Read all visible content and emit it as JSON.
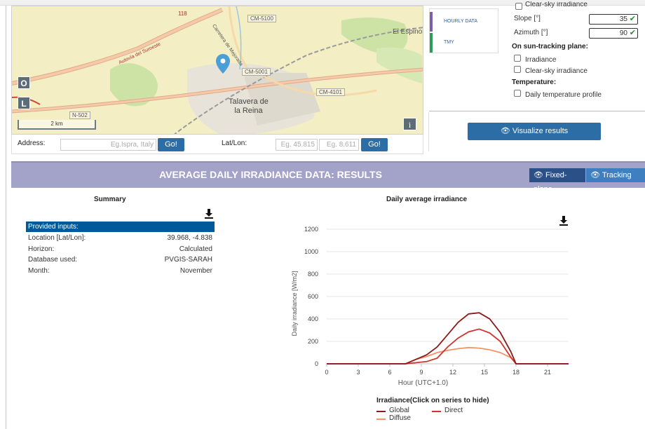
{
  "map": {
    "zoom_in_label": "O",
    "zoom_out_label": "L",
    "scale_label": "2 km",
    "info_label": "i",
    "places": {
      "city": "Talavera de la Reina",
      "city_line1": "Talavera de",
      "city_line2": "la Reina",
      "el_espino": "El Espinos",
      "autovia": "Autovía del Suroeste",
      "carretera": "Carretera de Mejorada"
    },
    "roads": [
      "CM-5100",
      "CM-5001",
      "CM-4101",
      "N-502",
      "118"
    ]
  },
  "address_bar": {
    "address_label": "Address:",
    "address_placeholder": "Eg.Ispra, Italy",
    "go_label": "Go!",
    "latlon_label": "Lat/Lon:",
    "lat_placeholder": "Eg. 45.815",
    "lon_placeholder": "Eg. 8.611",
    "go2_label": "Go!"
  },
  "right_panel": {
    "tabs": [
      {
        "label": "HOURLY DATA",
        "color": "#7b5fa8"
      },
      {
        "label": "TMY",
        "color": "#2a9d5a"
      }
    ],
    "partial_top_label": "Clear-sky irradiance",
    "slope_label": "Slope [°]",
    "slope_value": "35",
    "azimuth_label": "Azimuth [°]",
    "azimuth_value": "90",
    "tracking_heading": "On sun-tracking plane:",
    "irradiance_label": "Irradiance",
    "clearsky_label": "Clear-sky irradiance",
    "temperature_heading": "Temperature:",
    "daily_temp_label": "Daily temperature profile",
    "visualize_label": "Visualize results"
  },
  "results": {
    "title": "AVERAGE DAILY IRRADIANCE DATA: RESULTS",
    "fixed_plane_label": "Fixed-plane",
    "tracking_label": "Tracking"
  },
  "summary": {
    "title": "Summary",
    "header": "Provided inputs:",
    "rows": [
      {
        "key": "Location [Lat/Lon]:",
        "value": "39.968, -4.838"
      },
      {
        "key": "Horizon:",
        "value": "Calculated"
      },
      {
        "key": "Database used:",
        "value": "PVGIS-SARAH"
      },
      {
        "key": "Month:",
        "value": "November"
      }
    ]
  },
  "chart_title": "Daily average irradiance",
  "chart_data": {
    "type": "line",
    "title": "Daily average irradiance",
    "xlabel": "Hour (UTC+1.0)",
    "ylabel": "Daily irradiance [W/m2]",
    "xlim": [
      0,
      23
    ],
    "ylim": [
      0,
      1200
    ],
    "x_ticks": [
      0,
      3,
      6,
      9,
      12,
      15,
      18,
      21
    ],
    "y_ticks": [
      0,
      200,
      400,
      600,
      800,
      1000,
      1200
    ],
    "grid": true,
    "legend_title": "Irradiance(Click on series to hide)",
    "x": [
      0,
      1,
      2,
      3,
      4,
      5,
      6,
      7,
      7.5,
      8.5,
      9.5,
      10.5,
      11.5,
      12.5,
      13.5,
      14.5,
      15.5,
      16.5,
      17.5,
      18,
      19,
      20,
      21,
      22,
      23
    ],
    "series": [
      {
        "name": "Global",
        "color": "#8b1a1a",
        "values": [
          0,
          0,
          0,
          0,
          0,
          0,
          0,
          0,
          0,
          40,
          80,
          150,
          260,
          370,
          445,
          455,
          400,
          280,
          110,
          0,
          0,
          0,
          0,
          0,
          0
        ]
      },
      {
        "name": "Direct",
        "color": "#d0342c",
        "values": [
          0,
          0,
          0,
          0,
          0,
          0,
          0,
          0,
          0,
          10,
          20,
          50,
          150,
          230,
          285,
          310,
          275,
          200,
          60,
          0,
          0,
          0,
          0,
          0,
          0
        ]
      },
      {
        "name": "Diffuse",
        "color": "#f0956a",
        "values": [
          0,
          0,
          0,
          0,
          0,
          0,
          0,
          0,
          0,
          40,
          65,
          100,
          120,
          135,
          145,
          140,
          125,
          100,
          55,
          0,
          0,
          0,
          0,
          0,
          0
        ]
      }
    ]
  }
}
